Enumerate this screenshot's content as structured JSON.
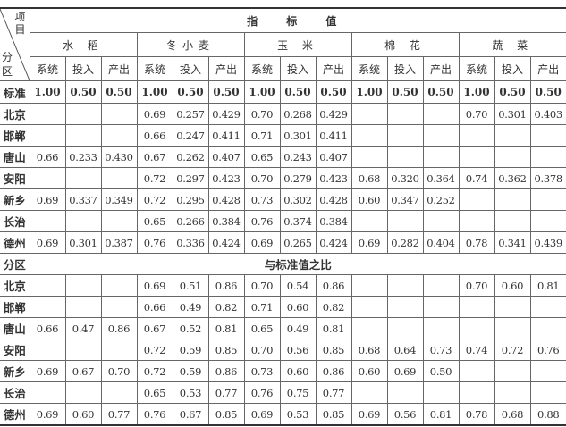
{
  "corner": {
    "item": "项目",
    "zone": "分区"
  },
  "title": "指 标 值",
  "crops": [
    "水 稻",
    "冬小麦",
    "玉 米",
    "棉 花",
    "蔬 菜"
  ],
  "sub_headers": [
    "系统",
    "投入",
    "产出"
  ],
  "standard": {
    "label": "标准",
    "values": [
      "1.00",
      "0.50",
      "0.50",
      "1.00",
      "0.50",
      "0.50",
      "1.00",
      "0.50",
      "0.50",
      "1.00",
      "0.50",
      "0.50",
      "1.00",
      "0.50",
      "0.50"
    ]
  },
  "index_rows": [
    {
      "zone": "北京",
      "values": [
        "",
        "",
        "",
        "0.69",
        "0.257",
        "0.429",
        "0.70",
        "0.268",
        "0.429",
        "",
        "",
        "",
        "0.70",
        "0.301",
        "0.403"
      ]
    },
    {
      "zone": "邯郸",
      "values": [
        "",
        "",
        "",
        "0.66",
        "0.247",
        "0.411",
        "0.71",
        "0.301",
        "0.411",
        "",
        "",
        "",
        "",
        "",
        ""
      ]
    },
    {
      "zone": "唐山",
      "values": [
        "0.66",
        "0.233",
        "0.430",
        "0.67",
        "0.262",
        "0.407",
        "0.65",
        "0.243",
        "0.407",
        "",
        "",
        "",
        "",
        "",
        ""
      ]
    },
    {
      "zone": "安阳",
      "values": [
        "",
        "",
        "",
        "0.72",
        "0.297",
        "0.423",
        "0.70",
        "0.279",
        "0.423",
        "0.68",
        "0.320",
        "0.364",
        "0.74",
        "0.362",
        "0.378"
      ]
    },
    {
      "zone": "新乡",
      "values": [
        "0.69",
        "0.337",
        "0.349",
        "0.72",
        "0.295",
        "0.428",
        "0.73",
        "0.302",
        "0.428",
        "0.60",
        "0.347",
        "0.252",
        "",
        "",
        ""
      ]
    },
    {
      "zone": "长治",
      "values": [
        "",
        "",
        "",
        "0.65",
        "0.266",
        "0.384",
        "0.76",
        "0.374",
        "0.384",
        "",
        "",
        "",
        "",
        "",
        ""
      ]
    },
    {
      "zone": "德州",
      "values": [
        "0.69",
        "0.301",
        "0.387",
        "0.76",
        "0.336",
        "0.424",
        "0.69",
        "0.265",
        "0.424",
        "0.69",
        "0.282",
        "0.404",
        "0.78",
        "0.341",
        "0.439"
      ]
    }
  ],
  "ratio_header": {
    "zone": "分区",
    "title": "与标准值之比"
  },
  "ratio_rows": [
    {
      "zone": "北京",
      "values": [
        "",
        "",
        "",
        "0.69",
        "0.51",
        "0.86",
        "0.70",
        "0.54",
        "0.86",
        "",
        "",
        "",
        "0.70",
        "0.60",
        "0.81"
      ]
    },
    {
      "zone": "邯郸",
      "values": [
        "",
        "",
        "",
        "0.66",
        "0.49",
        "0.82",
        "0.71",
        "0.60",
        "0.82",
        "",
        "",
        "",
        "",
        "",
        ""
      ]
    },
    {
      "zone": "唐山",
      "values": [
        "0.66",
        "0.47",
        "0.86",
        "0.67",
        "0.52",
        "0.81",
        "0.65",
        "0.49",
        "0.81",
        "",
        "",
        "",
        "",
        "",
        ""
      ]
    },
    {
      "zone": "安阳",
      "values": [
        "",
        "",
        "",
        "0.72",
        "0.59",
        "0.85",
        "0.70",
        "0.56",
        "0.85",
        "0.68",
        "0.64",
        "0.73",
        "0.74",
        "0.72",
        "0.76"
      ]
    },
    {
      "zone": "新乡",
      "values": [
        "0.69",
        "0.67",
        "0.70",
        "0.72",
        "0.59",
        "0.86",
        "0.73",
        "0.60",
        "0.86",
        "0.60",
        "0.69",
        "0.50",
        "",
        "",
        ""
      ]
    },
    {
      "zone": "长治",
      "values": [
        "",
        "",
        "",
        "0.65",
        "0.53",
        "0.77",
        "0.76",
        "0.75",
        "0.77",
        "",
        "",
        "",
        "",
        "",
        ""
      ]
    },
    {
      "zone": "德州",
      "values": [
        "0.69",
        "0.60",
        "0.77",
        "0.76",
        "0.67",
        "0.85",
        "0.69",
        "0.53",
        "0.85",
        "0.69",
        "0.56",
        "0.81",
        "0.78",
        "0.68",
        "0.88"
      ]
    }
  ]
}
